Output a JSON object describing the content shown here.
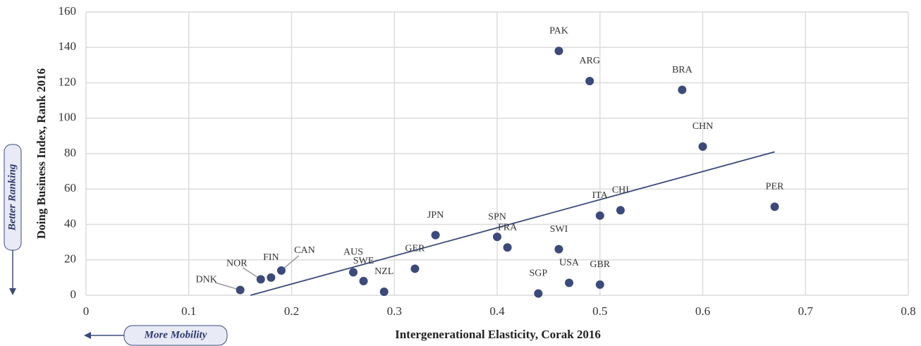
{
  "chart_data": {
    "type": "scatter",
    "x_label": "Intergenerational Elasticity, Corak 2016",
    "y_label": "Doing Business Index, Rank 2016",
    "annotations": [
      "Better Ranking",
      "More Mobility"
    ],
    "color": "#3b4a7a",
    "grid": true,
    "xlim": [
      0,
      0.8
    ],
    "xticks": [
      0,
      0.1,
      0.2,
      0.3,
      0.4,
      0.5,
      0.6,
      0.7,
      0.8
    ],
    "ylim": [
      0,
      160
    ],
    "yticks": [
      0,
      20,
      40,
      60,
      80,
      100,
      120,
      140,
      160
    ],
    "labels": [
      "DNK",
      "NOR",
      "FIN",
      "CAN",
      "AUS",
      "SWE",
      "NZL",
      "GER",
      "JPN",
      "SPN",
      "FRA",
      "SGP",
      "SWI",
      "USA",
      "PAK",
      "ARG",
      "ITA",
      "GBR",
      "CHI",
      "BRA",
      "CHN",
      "PER"
    ],
    "x": [
      0.15,
      0.17,
      0.18,
      0.19,
      0.26,
      0.27,
      0.29,
      0.32,
      0.34,
      0.4,
      0.41,
      0.44,
      0.46,
      0.47,
      0.46,
      0.49,
      0.5,
      0.5,
      0.52,
      0.58,
      0.6,
      0.67
    ],
    "y": [
      3,
      9,
      10,
      14,
      13,
      8,
      2,
      15,
      34,
      33,
      27,
      1,
      26,
      7,
      138,
      121,
      45,
      6,
      48,
      116,
      84,
      50
    ],
    "trendline": {
      "x": [
        0.16,
        0.67
      ],
      "y": [
        0,
        81
      ]
    }
  }
}
